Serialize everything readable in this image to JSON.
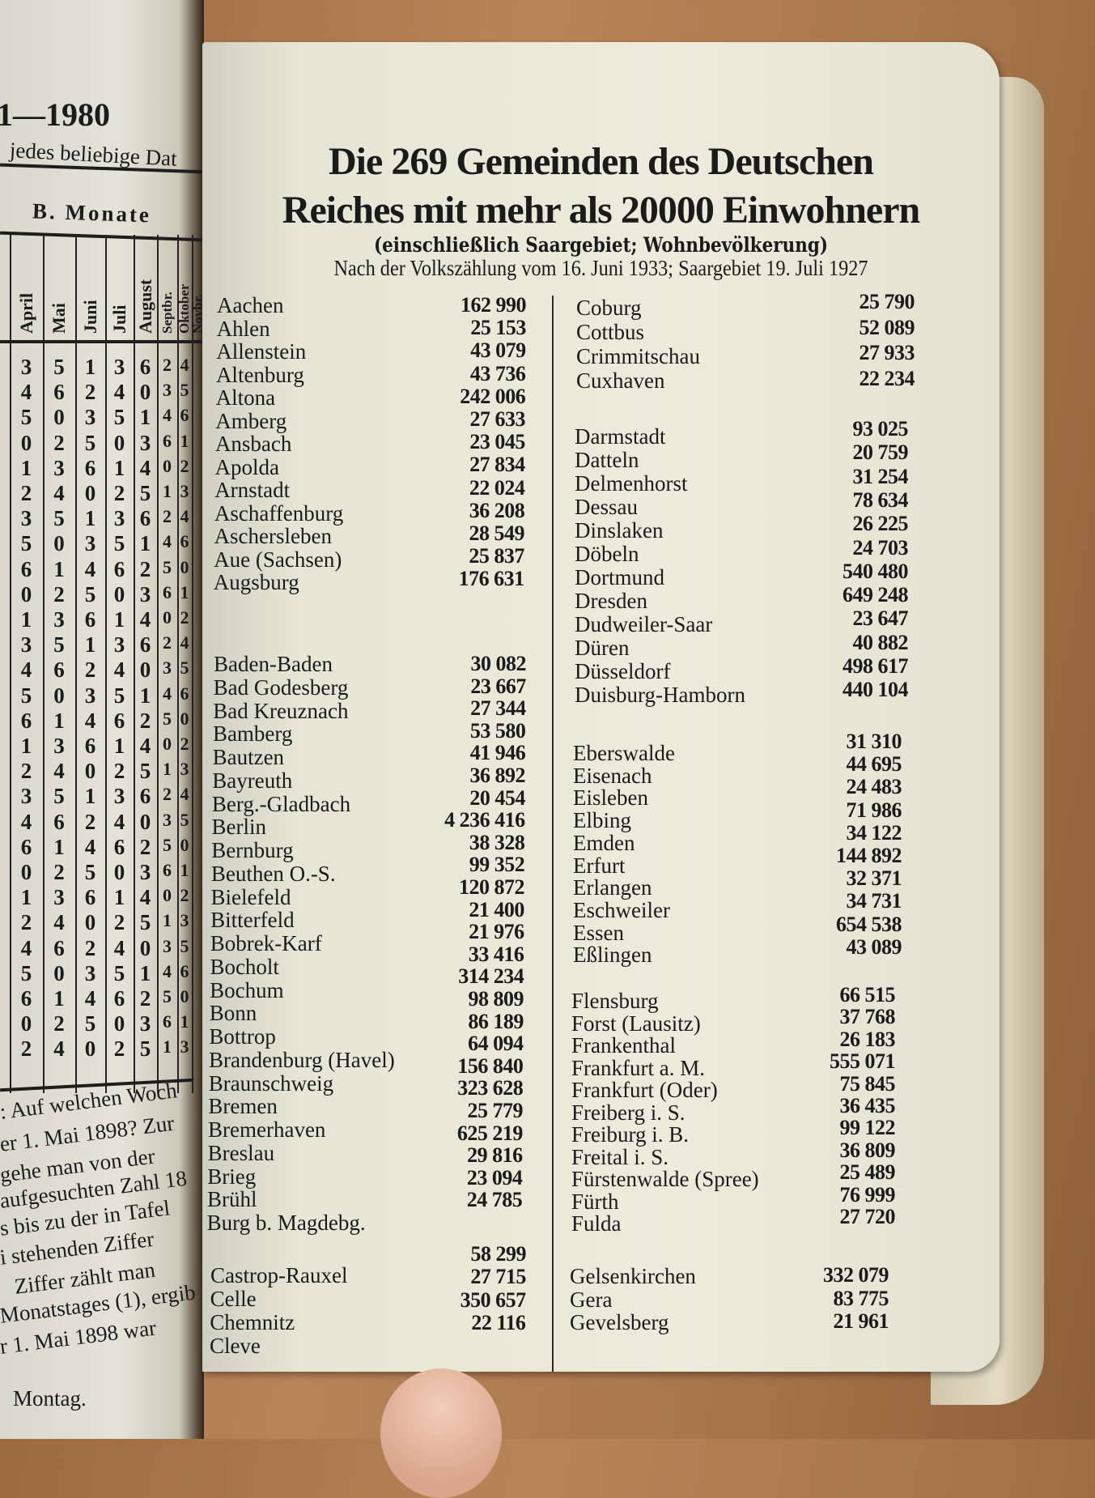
{
  "left_page": {
    "year_heading": "1—1980",
    "hint_text": "jedes beliebige Dat",
    "section_title": "B. Monate",
    "month_headers": [
      "April",
      "Mai",
      "Juni",
      "Juli",
      "August",
      "Septbr.",
      "Oktober",
      "Novbr."
    ],
    "rows": [
      [
        3,
        5,
        1,
        3,
        6,
        2,
        4
      ],
      [
        4,
        6,
        2,
        4,
        0,
        3,
        5
      ],
      [
        5,
        0,
        3,
        5,
        1,
        4,
        6
      ],
      [
        0,
        2,
        5,
        0,
        3,
        6,
        1
      ],
      [
        1,
        3,
        6,
        1,
        4,
        0,
        2
      ],
      [
        2,
        4,
        0,
        2,
        5,
        1,
        3
      ],
      [
        3,
        5,
        1,
        3,
        6,
        2,
        4
      ],
      [
        5,
        0,
        3,
        5,
        1,
        4,
        6
      ],
      [
        6,
        1,
        4,
        6,
        2,
        5,
        0
      ],
      [
        0,
        2,
        5,
        0,
        3,
        6,
        1
      ],
      [
        1,
        3,
        6,
        1,
        4,
        0,
        2
      ],
      [
        3,
        5,
        1,
        3,
        6,
        2,
        4
      ],
      [
        4,
        6,
        2,
        4,
        0,
        3,
        5
      ],
      [
        5,
        0,
        3,
        5,
        1,
        4,
        6
      ],
      [
        6,
        1,
        4,
        6,
        2,
        5,
        0
      ],
      [
        1,
        3,
        6,
        1,
        4,
        0,
        2
      ],
      [
        2,
        4,
        0,
        2,
        5,
        1,
        3
      ],
      [
        3,
        5,
        1,
        3,
        6,
        2,
        4
      ],
      [
        4,
        6,
        2,
        4,
        0,
        3,
        5
      ],
      [
        6,
        1,
        4,
        6,
        2,
        5,
        0
      ],
      [
        0,
        2,
        5,
        0,
        3,
        6,
        1
      ],
      [
        1,
        3,
        6,
        1,
        4,
        0,
        2
      ],
      [
        2,
        4,
        0,
        2,
        5,
        1,
        3
      ],
      [
        4,
        6,
        2,
        4,
        0,
        3,
        5
      ],
      [
        5,
        0,
        3,
        5,
        1,
        4,
        6
      ],
      [
        6,
        1,
        4,
        6,
        2,
        5,
        0
      ],
      [
        0,
        2,
        5,
        0,
        3,
        6,
        1
      ],
      [
        2,
        4,
        0,
        2,
        5,
        1,
        3
      ]
    ],
    "paragraph_lines": [
      ": Auf welchen Woch",
      "er 1. Mai 1898? Zur",
      "gehe man von der",
      "aufgesuchten Zahl 18",
      "s bis zu der in Tafel",
      "i  stehenden Ziffer",
      "Ziffer zählt man",
      "Monatstages (1), ergib",
      "r 1. Mai 1898 war"
    ],
    "answer": "Montag."
  },
  "right_page": {
    "title_line1": "Die 269 Gemeinden des Deutschen",
    "title_line2": "Reiches mit mehr als 20000 Einwohnern",
    "subtitle": "(einschließlich Saargebiet; Wohnbevölkerung)",
    "census_note": "Nach der Volkszählung vom 16. Juni 1933; Saargebiet 19. Juli 1927",
    "left_column": [
      {
        "names": [
          "Aachen",
          "Ahlen",
          "Allenstein",
          "Altenburg",
          "Altona",
          "Amberg",
          "Ansbach",
          "Apolda",
          "Arnstadt",
          "Aschaffenburg",
          "Aschersleben",
          "Aue (Sachsen)",
          "Augsburg"
        ],
        "numbers": [
          "162 990",
          "25 153",
          "43 079",
          "43 736",
          "242 006",
          "27 633",
          "23 045",
          "27 834",
          "22 024",
          "36 208",
          "28 549",
          "25 837",
          "176 631"
        ]
      },
      {
        "names": [
          "Baden-Baden",
          "Bad Godesberg",
          "Bad Kreuznach",
          "Bamberg",
          "Bautzen",
          "Bayreuth",
          "Berg.-Gladbach",
          "Berlin",
          "Bernburg",
          "Beuthen O.-S.",
          "Bielefeld",
          "Bitterfeld",
          "Bobrek-Karf",
          "Bocholt",
          "Bochum",
          "Bonn",
          "Bottrop",
          "Brandenburg (Havel)",
          "Braunschweig",
          "Bremen",
          "Bremerhaven",
          "Breslau",
          "Brieg",
          "Brühl",
          "Burg b. Magdebg."
        ],
        "numbers": [
          "30 082",
          "23 667",
          "27 344",
          "53 580",
          "41 946",
          "36 892",
          "20 454",
          "4 236 416",
          "38 328",
          "99 352",
          "120 872",
          "21 400",
          "21 976",
          "33 416",
          "314 234",
          "98 809",
          "86 189",
          "64 094",
          "156 840",
          "323 628",
          "25 779",
          "625 219",
          "29 816",
          "23 094",
          "24 785"
        ]
      },
      {
        "names": [
          "Castrop-Rauxel",
          "Celle",
          "Chemnitz",
          "Cleve"
        ],
        "numbers": [
          "58 299",
          "27 715",
          "350 657",
          "22 116"
        ]
      }
    ],
    "right_column": [
      {
        "names": [
          "Coburg",
          "Cottbus",
          "Crimmitschau",
          "Cuxhaven"
        ],
        "numbers": [
          "25 790",
          "52 089",
          "27 933",
          "22 234"
        ]
      },
      {
        "names": [
          "Darmstadt",
          "Datteln",
          "Delmenhorst",
          "Dessau",
          "Dinslaken",
          "Döbeln",
          "Dortmund",
          "Dresden",
          "Dudweiler-Saar",
          "Düren",
          "Düsseldorf",
          "Duisburg-Hamborn"
        ],
        "numbers": [
          "93 025",
          "20 759",
          "31 254",
          "78 634",
          "26 225",
          "24 703",
          "540 480",
          "649 248",
          "23 647",
          "40 882",
          "498 617",
          "440 104"
        ]
      },
      {
        "names": [
          "Eberswalde",
          "Eisenach",
          "Eisleben",
          "Elbing",
          "Emden",
          "Erfurt",
          "Erlangen",
          "Eschweiler",
          "Essen",
          "Eßlingen"
        ],
        "numbers": [
          "31 310",
          "44 695",
          "24 483",
          "71 986",
          "34 122",
          "144 892",
          "32 371",
          "34 731",
          "654 538",
          "43 089"
        ]
      },
      {
        "names": [
          "Flensburg",
          "Forst (Lausitz)",
          "Frankenthal",
          "Frankfurt a. M.",
          "Frankfurt (Oder)",
          "Freiberg i. S.",
          "Freiburg i. B.",
          "Freital i. S.",
          "Fürstenwalde (Spree)",
          "Fürth",
          "Fulda"
        ],
        "numbers": [
          "66 515",
          "37 768",
          "26 183",
          "555 071",
          "75 845",
          "36 435",
          "99 122",
          "36 809",
          "25 489",
          "76 999",
          "27 720"
        ]
      },
      {
        "names": [
          "Gelsenkirchen",
          "Gera",
          "Gevelsberg"
        ],
        "numbers": [
          "332 079",
          "83 775",
          "21 961"
        ]
      }
    ]
  },
  "colors": {
    "paper": "#ecebdc",
    "ink": "#1b1b1b",
    "wood": "#a8764b"
  }
}
